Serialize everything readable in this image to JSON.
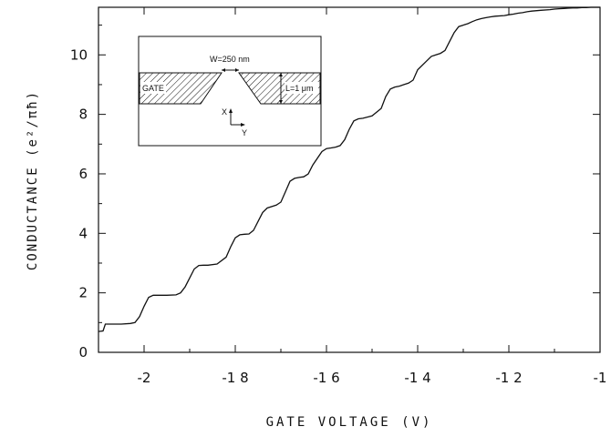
{
  "chart_data": {
    "type": "line",
    "xlabel": "GATE VOLTAGE (V)",
    "ylabel": "CONDUCTANCE (e²/πħ)",
    "xlim": [
      -2.1,
      -1.0
    ],
    "ylim": [
      0,
      11.6
    ],
    "x_ticks": [
      -2.0,
      -1.8,
      -1.6,
      -1.4,
      -1.2,
      -1.0
    ],
    "x_tick_labels": [
      "-2",
      "-1 8",
      "-1 6",
      "-1 4",
      "-1 2",
      "-1"
    ],
    "y_ticks": [
      0,
      2,
      4,
      6,
      8,
      10
    ],
    "y_tick_labels": [
      "0",
      "2",
      "4",
      "6",
      "8",
      "10"
    ],
    "grid": false,
    "series": [
      {
        "x": [
          -2.1,
          -2.09,
          -2.085,
          -2.07,
          -2.05,
          -2.03,
          -2.02,
          -2.01,
          -2.0,
          -1.99,
          -1.98,
          -1.95,
          -1.93,
          -1.92,
          -1.91,
          -1.9,
          -1.89,
          -1.88,
          -1.87,
          -1.86,
          -1.84,
          -1.82,
          -1.81,
          -1.8,
          -1.79,
          -1.78,
          -1.77,
          -1.76,
          -1.75,
          -1.74,
          -1.73,
          -1.71,
          -1.7,
          -1.69,
          -1.68,
          -1.67,
          -1.66,
          -1.65,
          -1.64,
          -1.63,
          -1.61,
          -1.6,
          -1.59,
          -1.58,
          -1.57,
          -1.56,
          -1.55,
          -1.54,
          -1.53,
          -1.52,
          -1.5,
          -1.48,
          -1.47,
          -1.46,
          -1.45,
          -1.44,
          -1.43,
          -1.42,
          -1.41,
          -1.4,
          -1.38,
          -1.37,
          -1.36,
          -1.35,
          -1.34,
          -1.33,
          -1.32,
          -1.31,
          -1.29,
          -1.28,
          -1.27,
          -1.26,
          -1.25,
          -1.24,
          -1.23,
          -1.21,
          -1.2,
          -1.19,
          -1.18,
          -1.17,
          -1.16,
          -1.15,
          -1.13,
          -1.11,
          -1.1,
          -1.09,
          -1.08,
          -1.07,
          -1.06,
          -1.05,
          -1.04,
          -1.03,
          -1.02,
          -1.01,
          -1.0
        ],
        "y": [
          0.7,
          0.72,
          0.95,
          0.95,
          0.95,
          0.97,
          1.0,
          1.2,
          1.55,
          1.85,
          1.92,
          1.92,
          1.93,
          2.0,
          2.2,
          2.5,
          2.8,
          2.92,
          2.93,
          2.93,
          2.97,
          3.2,
          3.55,
          3.85,
          3.95,
          3.97,
          3.98,
          4.1,
          4.4,
          4.7,
          4.85,
          4.95,
          5.05,
          5.4,
          5.75,
          5.85,
          5.88,
          5.9,
          6.0,
          6.3,
          6.75,
          6.85,
          6.87,
          6.9,
          6.95,
          7.15,
          7.5,
          7.78,
          7.85,
          7.87,
          7.95,
          8.2,
          8.6,
          8.85,
          8.92,
          8.95,
          9.0,
          9.05,
          9.15,
          9.5,
          9.8,
          9.95,
          10.0,
          10.05,
          10.15,
          10.45,
          10.75,
          10.95,
          11.05,
          11.12,
          11.18,
          11.22,
          11.25,
          11.28,
          11.3,
          11.32,
          11.35,
          11.37,
          11.4,
          11.42,
          11.45,
          11.47,
          11.5,
          11.52,
          11.54,
          11.55,
          11.56,
          11.57,
          11.58,
          11.58,
          11.59,
          11.59,
          11.6,
          11.6,
          11.6
        ]
      }
    ],
    "inset": {
      "labels": {
        "gate": "GATE",
        "width": "W=250 nm",
        "length": "L=1 μm",
        "x_axis": "X",
        "y_axis": "Y"
      }
    }
  }
}
